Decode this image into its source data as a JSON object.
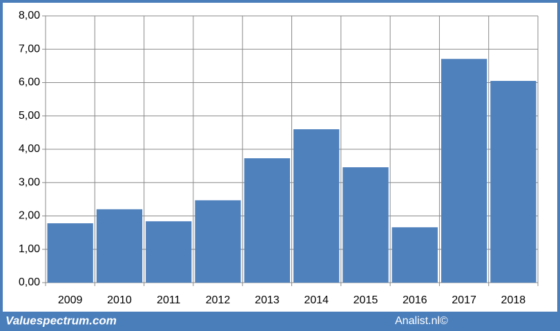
{
  "chart_data": {
    "type": "bar",
    "categories": [
      "2009",
      "2010",
      "2011",
      "2012",
      "2013",
      "2014",
      "2015",
      "2016",
      "2017",
      "2018"
    ],
    "values": [
      1.78,
      2.2,
      1.84,
      2.47,
      3.73,
      4.6,
      3.46,
      1.66,
      6.71,
      6.05
    ],
    "color": "#4f81bd",
    "ylim": [
      0,
      8
    ],
    "yticks": [
      {
        "value": 0,
        "label": "0,00"
      },
      {
        "value": 1,
        "label": "1,00"
      },
      {
        "value": 2,
        "label": "2,00"
      },
      {
        "value": 3,
        "label": "3,00"
      },
      {
        "value": 4,
        "label": "4,00"
      },
      {
        "value": 5,
        "label": "5,00"
      },
      {
        "value": 6,
        "label": "6,00"
      },
      {
        "value": 7,
        "label": "7,00"
      },
      {
        "value": 8,
        "label": "8,00"
      }
    ],
    "grid": true
  },
  "footer": {
    "site": "Valuespectrum.com",
    "credit": "Analist.nl©"
  }
}
